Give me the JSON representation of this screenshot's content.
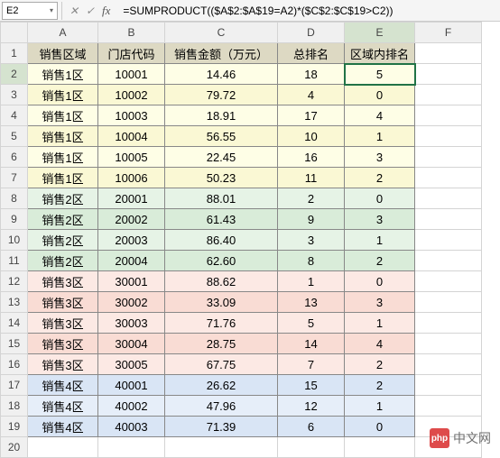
{
  "formula_bar": {
    "cell_ref": "E2",
    "fx_label": "fx",
    "formula": "=SUMPRODUCT(($A$2:$A$19=A2)*($C$2:$C$19>C2))"
  },
  "columns": [
    "A",
    "B",
    "C",
    "D",
    "E",
    "F"
  ],
  "active": {
    "col": "E",
    "row": 2
  },
  "headers": {
    "r1c1": "销售区域",
    "r1c2": "门店代码",
    "r1c3": "销售金额（万元）",
    "r1c4": "总排名",
    "r1c5": "区域内排名"
  },
  "rows": [
    {
      "n": 2,
      "zone": "销售1区",
      "code": "10001",
      "amount": "14.46",
      "rank": "18",
      "inrank": "5",
      "cls": "zone1"
    },
    {
      "n": 3,
      "zone": "销售1区",
      "code": "10002",
      "amount": "79.72",
      "rank": "4",
      "inrank": "0",
      "cls": "zone1-alt"
    },
    {
      "n": 4,
      "zone": "销售1区",
      "code": "10003",
      "amount": "18.91",
      "rank": "17",
      "inrank": "4",
      "cls": "zone1"
    },
    {
      "n": 5,
      "zone": "销售1区",
      "code": "10004",
      "amount": "56.55",
      "rank": "10",
      "inrank": "1",
      "cls": "zone1-alt"
    },
    {
      "n": 6,
      "zone": "销售1区",
      "code": "10005",
      "amount": "22.45",
      "rank": "16",
      "inrank": "3",
      "cls": "zone1"
    },
    {
      "n": 7,
      "zone": "销售1区",
      "code": "10006",
      "amount": "50.23",
      "rank": "11",
      "inrank": "2",
      "cls": "zone1-alt"
    },
    {
      "n": 8,
      "zone": "销售2区",
      "code": "20001",
      "amount": "88.01",
      "rank": "2",
      "inrank": "0",
      "cls": "zone2"
    },
    {
      "n": 9,
      "zone": "销售2区",
      "code": "20002",
      "amount": "61.43",
      "rank": "9",
      "inrank": "3",
      "cls": "zone2-alt"
    },
    {
      "n": 10,
      "zone": "销售2区",
      "code": "20003",
      "amount": "86.40",
      "rank": "3",
      "inrank": "1",
      "cls": "zone2"
    },
    {
      "n": 11,
      "zone": "销售2区",
      "code": "20004",
      "amount": "62.60",
      "rank": "8",
      "inrank": "2",
      "cls": "zone2-alt"
    },
    {
      "n": 12,
      "zone": "销售3区",
      "code": "30001",
      "amount": "88.62",
      "rank": "1",
      "inrank": "0",
      "cls": "zone3"
    },
    {
      "n": 13,
      "zone": "销售3区",
      "code": "30002",
      "amount": "33.09",
      "rank": "13",
      "inrank": "3",
      "cls": "zone3-alt"
    },
    {
      "n": 14,
      "zone": "销售3区",
      "code": "30003",
      "amount": "71.76",
      "rank": "5",
      "inrank": "1",
      "cls": "zone3"
    },
    {
      "n": 15,
      "zone": "销售3区",
      "code": "30004",
      "amount": "28.75",
      "rank": "14",
      "inrank": "4",
      "cls": "zone3-alt"
    },
    {
      "n": 16,
      "zone": "销售3区",
      "code": "30005",
      "amount": "67.75",
      "rank": "7",
      "inrank": "2",
      "cls": "zone3"
    },
    {
      "n": 17,
      "zone": "销售4区",
      "code": "40001",
      "amount": "26.62",
      "rank": "15",
      "inrank": "2",
      "cls": "zone4-alt"
    },
    {
      "n": 18,
      "zone": "销售4区",
      "code": "40002",
      "amount": "47.96",
      "rank": "12",
      "inrank": "1",
      "cls": "zone4"
    },
    {
      "n": 19,
      "zone": "销售4区",
      "code": "40003",
      "amount": "71.39",
      "rank": "6",
      "inrank": "0",
      "cls": "zone4-alt"
    }
  ],
  "empty_rows": [
    20
  ],
  "watermark": {
    "logo_text": "php",
    "text": "中文网"
  },
  "colors": {
    "header_bg": "#ddd9c3",
    "grid_border": "#d4d4d4",
    "data_border": "#888888",
    "active_highlight": "#d5e3cf",
    "selection_outline": "#217346"
  }
}
